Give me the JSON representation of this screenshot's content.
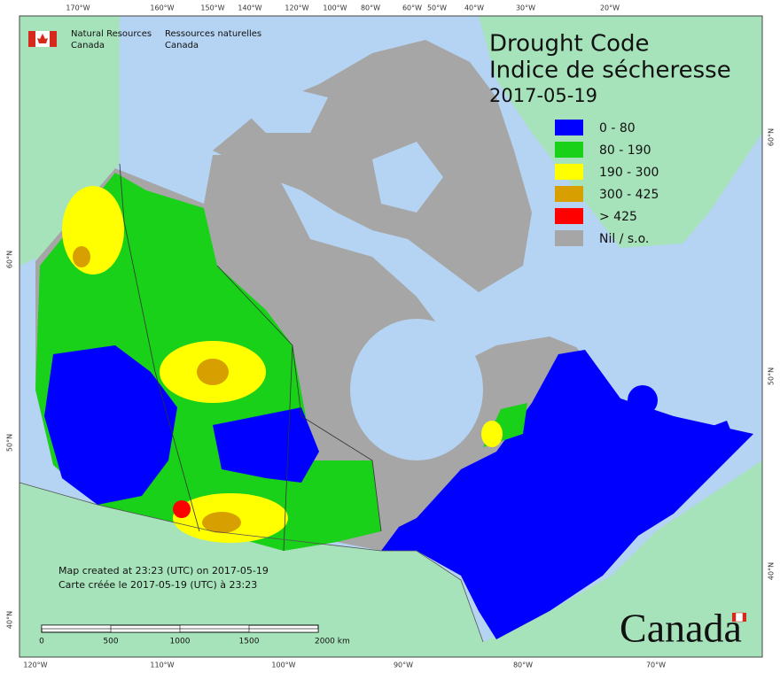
{
  "header": {
    "org_en": [
      "Natural Resources",
      "Canada"
    ],
    "org_fr": [
      "Ressources naturelles",
      "Canada"
    ]
  },
  "title": {
    "en": "Drought Code",
    "fr": "Indice de sécheresse",
    "date": "2017-05-19"
  },
  "legend": [
    {
      "label": "0 - 80",
      "color": "#0000ff"
    },
    {
      "label": "80 - 190",
      "color": "#19d119"
    },
    {
      "label": "190 - 300",
      "color": "#ffff00"
    },
    {
      "label": "300 - 425",
      "color": "#d89f00"
    },
    {
      "label": "> 425",
      "color": "#ff0000"
    },
    {
      "label": "Nil / s.o.",
      "color": "#a6a6a6"
    }
  ],
  "graticule": {
    "top": [
      "170°W",
      "160°W",
      "150°W",
      "140°W",
      "120°W",
      "100°W",
      "80°W",
      "60°W",
      "50°W",
      "40°W",
      "30°W",
      "20°W"
    ],
    "bottom": [
      "120°W",
      "110°W",
      "100°W",
      "90°W",
      "80°W",
      "70°W"
    ],
    "left": [
      "60°N",
      "50°N",
      "40°N"
    ],
    "right": [
      "60°N",
      "50°N",
      "40°N"
    ]
  },
  "notes": [
    "Map created at 23:23 (UTC) on 2017-05-19",
    "Carte créée le 2017-05-19 (UTC) à 23:23"
  ],
  "scale_bar": [
    "0",
    "500",
    "1000",
    "1500",
    "2000 km"
  ],
  "wordmark": "Canada"
}
